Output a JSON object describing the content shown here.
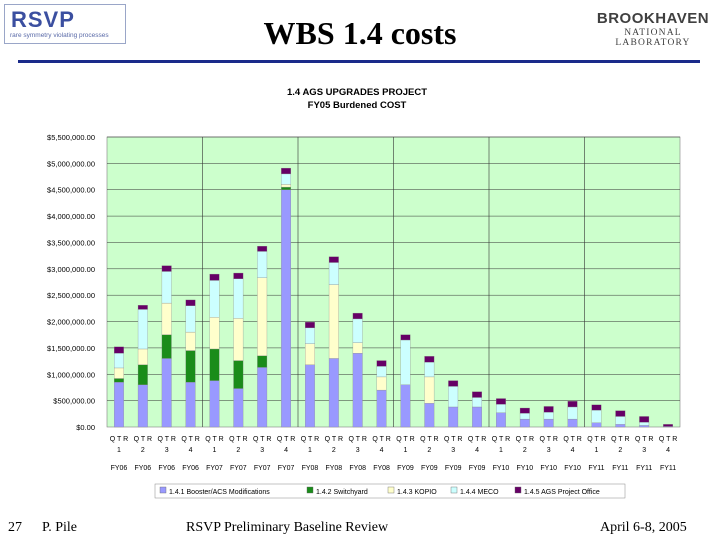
{
  "header": {
    "title": "WBS 1.4 costs",
    "logo_left_big": "RSVP",
    "logo_left_small": "rare symmetry violating processes",
    "logo_right_top": "BROOKHAVEN",
    "logo_right_bottom": "NATIONAL LABORATORY"
  },
  "footer": {
    "page_number": "27",
    "author": "P. Pile",
    "event": "RSVP Preliminary Baseline Review",
    "date": "April 6-8, 2005"
  },
  "colors": {
    "plot_bg": "#ccffcc",
    "rule": "#1a2a8a",
    "series": [
      "#9999ff",
      "#1a8c1a",
      "#ffffcc",
      "#ccffff",
      "#660066"
    ]
  },
  "chart_data": {
    "type": "bar",
    "stacked": true,
    "title": "1.4 AGS UPGRADES PROJECT",
    "subtitle": "FY05 Burdened COST",
    "xlabel": "",
    "ylabel": "",
    "ylim": [
      0,
      5500000
    ],
    "yticks": [
      "$0.00",
      "$500,000.00",
      "$1,000,000.00",
      "$1,500,000.00",
      "$2,000,000.00",
      "$2,500,000.00",
      "$3,000,000.00",
      "$3,500,000.00",
      "$4,000,000.00",
      "$4,500,000.00",
      "$5,000,000.00",
      "$5,500,000.00"
    ],
    "categories": [
      {
        "q": "Q T R",
        "n": "1",
        "fy": "FY06"
      },
      {
        "q": "Q T R",
        "n": "2",
        "fy": "FY06"
      },
      {
        "q": "Q T R",
        "n": "3",
        "fy": "FY06"
      },
      {
        "q": "Q T R",
        "n": "4",
        "fy": "FY06"
      },
      {
        "q": "Q T R",
        "n": "1",
        "fy": "FY07"
      },
      {
        "q": "Q T R",
        "n": "2",
        "fy": "FY07"
      },
      {
        "q": "Q T R",
        "n": "3",
        "fy": "FY07"
      },
      {
        "q": "Q T R",
        "n": "4",
        "fy": "FY07"
      },
      {
        "q": "Q T R",
        "n": "1",
        "fy": "FY08"
      },
      {
        "q": "Q T R",
        "n": "2",
        "fy": "FY08"
      },
      {
        "q": "Q T R",
        "n": "3",
        "fy": "FY08"
      },
      {
        "q": "Q T R",
        "n": "4",
        "fy": "FY08"
      },
      {
        "q": "Q T R",
        "n": "1",
        "fy": "FY09"
      },
      {
        "q": "Q T R",
        "n": "2",
        "fy": "FY09"
      },
      {
        "q": "Q T R",
        "n": "3",
        "fy": "FY09"
      },
      {
        "q": "Q T R",
        "n": "4",
        "fy": "FY09"
      },
      {
        "q": "Q T R",
        "n": "1",
        "fy": "FY10"
      },
      {
        "q": "Q T R",
        "n": "2",
        "fy": "FY10"
      },
      {
        "q": "Q T R",
        "n": "3",
        "fy": "FY10"
      },
      {
        "q": "Q T R",
        "n": "4",
        "fy": "FY10"
      },
      {
        "q": "Q T R",
        "n": "1",
        "fy": "FY11"
      },
      {
        "q": "Q T R",
        "n": "2",
        "fy": "FY11"
      },
      {
        "q": "Q T R",
        "n": "3",
        "fy": "FY11"
      },
      {
        "q": "Q T R",
        "n": "4",
        "fy": "FY11"
      }
    ],
    "series": [
      {
        "name": "1.4.1 Booster/ACS Modifications",
        "values": [
          850000,
          800000,
          1300000,
          850000,
          880000,
          730000,
          1130000,
          4500000,
          1180000,
          1300000,
          1400000,
          700000,
          800000,
          450000,
          380000,
          380000,
          270000,
          150000,
          150000,
          150000,
          80000,
          50000,
          30000,
          10000
        ]
      },
      {
        "name": "1.4.2 Switchyard",
        "values": [
          70000,
          380000,
          450000,
          600000,
          600000,
          530000,
          220000,
          50000,
          0,
          0,
          0,
          0,
          0,
          0,
          0,
          0,
          0,
          0,
          0,
          0,
          0,
          0,
          0,
          0
        ]
      },
      {
        "name": "1.4.3 KOPIO",
        "values": [
          200000,
          300000,
          600000,
          350000,
          600000,
          800000,
          1480000,
          50000,
          400000,
          1400000,
          200000,
          250000,
          0,
          500000,
          0,
          0,
          0,
          0,
          0,
          0,
          0,
          0,
          0,
          0
        ]
      },
      {
        "name": "1.4.4 MECO",
        "values": [
          280000,
          750000,
          600000,
          500000,
          700000,
          750000,
          500000,
          200000,
          300000,
          420000,
          450000,
          200000,
          850000,
          280000,
          390000,
          180000,
          160000,
          110000,
          130000,
          230000,
          240000,
          150000,
          60000,
          0
        ]
      },
      {
        "name": "1.4.5 AGS Project Office",
        "values": [
          120000,
          80000,
          110000,
          110000,
          120000,
          110000,
          100000,
          110000,
          110000,
          110000,
          110000,
          110000,
          100000,
          110000,
          110000,
          110000,
          110000,
          100000,
          110000,
          110000,
          100000,
          110000,
          110000,
          40000
        ]
      }
    ],
    "grid": "horizontal",
    "legend_position": "bottom"
  }
}
